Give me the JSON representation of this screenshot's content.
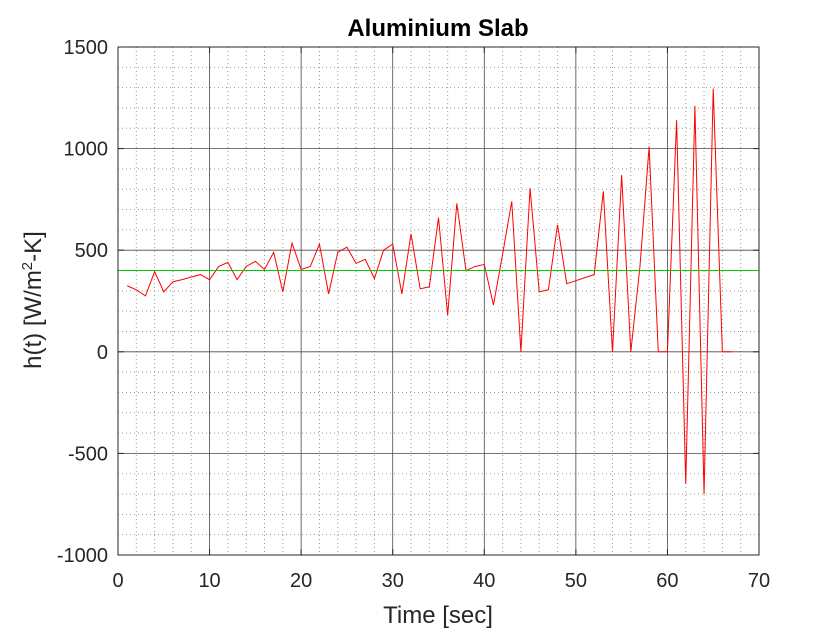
{
  "chart_data": {
    "type": "line",
    "title": "Aluminium Slab",
    "xlabel": "Time [sec]",
    "ylabel": {
      "prefix": "h(t) [W/m",
      "sup": "2",
      "suffix": "-K]"
    },
    "xlim": [
      0,
      70
    ],
    "ylim": [
      -1000,
      1500
    ],
    "xticks": [
      0,
      10,
      20,
      30,
      40,
      50,
      60,
      70
    ],
    "yticks": [
      -1000,
      -500,
      0,
      500,
      1000,
      1500
    ],
    "xtick_labels": [
      "0",
      "10",
      "20",
      "30",
      "40",
      "50",
      "60",
      "70"
    ],
    "ytick_labels": [
      "-1000",
      "-500",
      "0",
      "500",
      "1000",
      "1500"
    ],
    "grid": true,
    "minor_grid": true,
    "series": [
      {
        "color": "#ff0000",
        "x": [
          1,
          2,
          3,
          4,
          5,
          6,
          7,
          8,
          9,
          10,
          11,
          12,
          13,
          14,
          15,
          16,
          17,
          18,
          19,
          20,
          21,
          22,
          23,
          24,
          25,
          26,
          27,
          28,
          29,
          30,
          31,
          32,
          33,
          34,
          35,
          36,
          37,
          38,
          39,
          40,
          41,
          42,
          43,
          44,
          45,
          46,
          47,
          48,
          49,
          50,
          51,
          52,
          53,
          54,
          55,
          56,
          57,
          58,
          59,
          60,
          61,
          62,
          63,
          64,
          65,
          66,
          67
        ],
        "y": [
          325,
          305,
          275,
          395,
          295,
          345,
          355,
          368,
          380,
          355,
          420,
          440,
          355,
          420,
          445,
          405,
          490,
          295,
          535,
          405,
          420,
          530,
          285,
          490,
          515,
          435,
          455,
          360,
          500,
          530,
          285,
          580,
          310,
          320,
          660,
          180,
          730,
          400,
          420,
          430,
          230,
          480,
          740,
          0,
          805,
          295,
          305,
          625,
          335,
          350,
          365,
          380,
          790,
          0,
          870,
          0,
          420,
          1010,
          0,
          0,
          1140,
          -650,
          1210,
          -700,
          1295,
          0,
          0
        ]
      },
      {
        "color": "#00cc00",
        "x": [
          0,
          70
        ],
        "y": [
          400,
          400
        ]
      }
    ]
  }
}
